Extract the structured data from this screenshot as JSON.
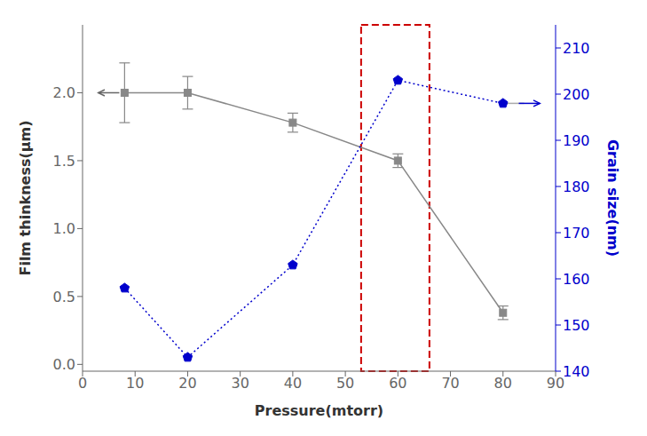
{
  "chart_data": {
    "type": "line",
    "x_label": "Pressure(mtorr)",
    "y_label": "Film thinkness(μm)",
    "y2_label": "Grain size(nm)",
    "x": [
      8,
      20,
      40,
      60,
      80
    ],
    "xlim": [
      0,
      90
    ],
    "xticks": [
      0,
      10,
      20,
      30,
      40,
      50,
      60,
      70,
      80,
      90
    ],
    "ylim": [
      -0.05,
      2.5
    ],
    "yticks": [
      {
        "value": 0,
        "label": "0.0"
      },
      0.5,
      {
        "value": 1.0,
        "label": "1.0"
      },
      1.5,
      {
        "value": 2.0,
        "label": "2.0"
      }
    ],
    "y2lim": [
      140,
      215
    ],
    "y2ticks": [
      140,
      150,
      160,
      170,
      180,
      190,
      200,
      210
    ],
    "grid": false,
    "series": [
      {
        "color": "#888888",
        "marker": "square",
        "line_style": "solid",
        "values": [
          2.0,
          2.0,
          1.78,
          1.5,
          0.38
        ],
        "errors": [
          0.22,
          0.12,
          0.07,
          0.05,
          0.05
        ]
      },
      {
        "axis": "y2",
        "color": "#0000cc",
        "marker": "pentagon",
        "line_style": "dotted",
        "values": [
          158,
          143,
          163,
          203,
          198
        ]
      }
    ],
    "annotations": [
      {
        "type": "arrow",
        "x1": 7,
        "x2": 3,
        "y": 2.0,
        "color": "#666666"
      },
      {
        "type": "line",
        "axis": "y2",
        "x1": 80,
        "x2": 84,
        "y": 198,
        "color": "#aaaaaa"
      },
      {
        "type": "arrow",
        "axis": "y2",
        "x1": 83,
        "x2": 87,
        "y": 198,
        "color": "#0000cc"
      },
      {
        "type": "rect",
        "x1": 53,
        "x2": 66,
        "color": "#cc0000",
        "line_style": "dashed"
      }
    ]
  }
}
